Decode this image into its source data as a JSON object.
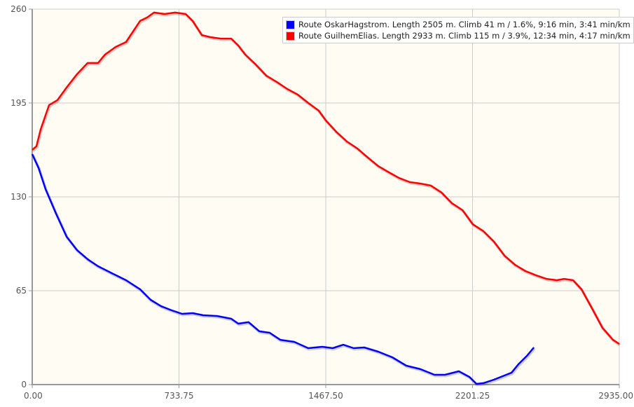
{
  "chart_data": {
    "type": "line",
    "title": "",
    "xlabel": "",
    "ylabel": "",
    "xlim": [
      0,
      2935
    ],
    "ylim": [
      0,
      260
    ],
    "grid": true,
    "legend_position": "top-right",
    "x_ticks": [
      "0.00",
      "733.75",
      "1467.50",
      "2201.25",
      "2935.00"
    ],
    "x_tick_values": [
      0,
      733.75,
      1467.5,
      2201.25,
      2935
    ],
    "y_ticks": [
      "0",
      "65",
      "130",
      "195",
      "260"
    ],
    "y_tick_values": [
      0,
      65,
      130,
      195,
      260
    ],
    "series": [
      {
        "name": "Route OskarHagstrom. Length 2505 m. Climb 41 m / 1.6%, 9:16 min, 3:41 min/km",
        "color": "#0000ff",
        "x": [
          0,
          32,
          67,
          119,
          172,
          224,
          277,
          329,
          399,
          469,
          539,
          592,
          644,
          697,
          749,
          802,
          855,
          925,
          995,
          1030,
          1082,
          1135,
          1187,
          1240,
          1310,
          1380,
          1450,
          1502,
          1555,
          1607,
          1660,
          1730,
          1800,
          1870,
          1940,
          2011,
          2063,
          2133,
          2186,
          2221,
          2256,
          2308,
          2361,
          2396,
          2431,
          2473,
          2508
        ],
        "y": [
          159.6,
          150,
          135.3,
          118.4,
          102.4,
          93.1,
          86.8,
          82,
          77.1,
          72.3,
          66,
          58.7,
          54.3,
          51.4,
          49,
          49.5,
          48,
          47.5,
          45.6,
          42.2,
          43.2,
          36.9,
          35.9,
          31,
          29.6,
          25.2,
          26.2,
          25.2,
          27.6,
          25.2,
          25.7,
          22.8,
          18.9,
          13.1,
          10.7,
          6.8,
          6.8,
          9.2,
          5.3,
          0.5,
          1,
          3.4,
          6.3,
          8.2,
          14.1,
          19.9,
          25.7
        ]
      },
      {
        "name": "Route GuilhemElias. Length 2933 m. Climb 115 m / 3.9%, 12:34 min, 4:17 min/km",
        "color": "#ff0000",
        "x": [
          0,
          21,
          42,
          84,
          126,
          172,
          224,
          277,
          329,
          364,
          417,
          469,
          504,
          539,
          574,
          609,
          662,
          715,
          767,
          802,
          848,
          890,
          942,
          995,
          1030,
          1065,
          1117,
          1170,
          1222,
          1275,
          1327,
          1380,
          1432,
          1467,
          1520,
          1573,
          1625,
          1678,
          1730,
          1783,
          1835,
          1888,
          1940,
          1993,
          2046,
          2098,
          2151,
          2203,
          2256,
          2308,
          2361,
          2413,
          2466,
          2518,
          2571,
          2623,
          2659,
          2704,
          2746,
          2798,
          2851,
          2903,
          2935
        ],
        "y": [
          162.5,
          165,
          176.6,
          193.5,
          197,
          205.7,
          215,
          222.7,
          222.7,
          228.5,
          233.8,
          237.2,
          244.5,
          251.8,
          254.2,
          257.6,
          256.6,
          257.6,
          256.6,
          251.8,
          242,
          240.6,
          239.6,
          239.6,
          234.8,
          228.5,
          221.7,
          213.9,
          209.6,
          204.7,
          200.8,
          195,
          189.7,
          183,
          175,
          168.3,
          163.5,
          157.2,
          151.3,
          147,
          143,
          140.2,
          139.2,
          137.8,
          133,
          125.6,
          120.8,
          111,
          106.2,
          99,
          89.3,
          83,
          78.6,
          75.7,
          73.2,
          72.3,
          73.2,
          72.3,
          66,
          52.9,
          39.3,
          31,
          28.1
        ]
      }
    ]
  }
}
